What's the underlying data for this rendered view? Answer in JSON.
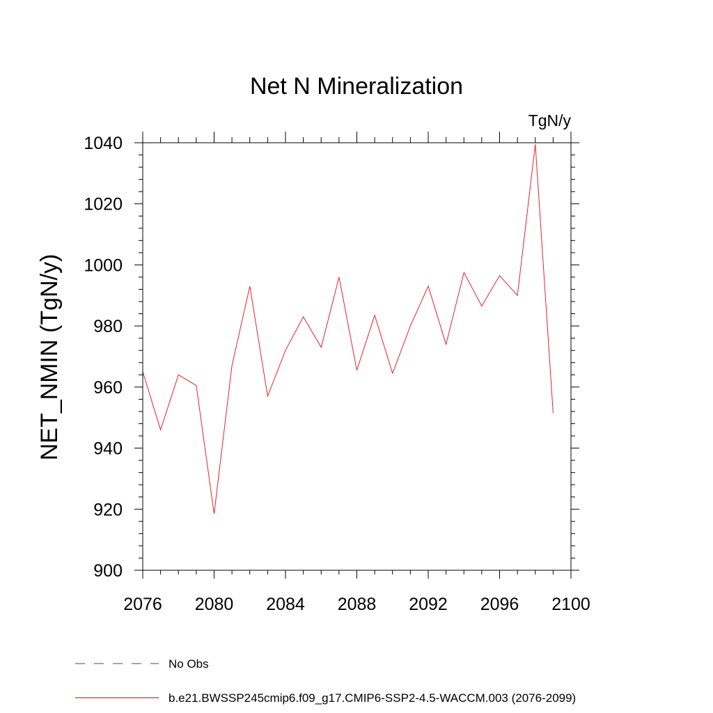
{
  "chart_data": {
    "type": "line",
    "title": "Net N Mineralization",
    "units_label": "TgN/y",
    "ylabel": "NET_NMIN  (TgN/y)",
    "xlabel": "",
    "xlim": [
      2076,
      2100
    ],
    "ylim": [
      900,
      1040
    ],
    "x_ticks": [
      2076,
      2080,
      2084,
      2088,
      2092,
      2096,
      2100
    ],
    "y_ticks": [
      900,
      920,
      940,
      960,
      980,
      1000,
      1020,
      1040
    ],
    "x_tick_labels": [
      "2076",
      "2080",
      "2084",
      "2088",
      "2092",
      "2096",
      "2100"
    ],
    "y_tick_labels": [
      "900",
      "920",
      "940",
      "960",
      "980",
      "1000",
      "1020",
      "1040"
    ],
    "grid": false,
    "legend_position": "bottom-left",
    "series": [
      {
        "name": "b.e21.BWSSP245cmip6.f09_g17.CMIP6-SSP2-4.5-WACCM.003 (2076-2099)",
        "color": "#e8202a",
        "style": "solid",
        "x": [
          2076,
          2077,
          2078,
          2079,
          2080,
          2081,
          2082,
          2083,
          2084,
          2085,
          2086,
          2087,
          2088,
          2089,
          2090,
          2091,
          2092,
          2093,
          2094,
          2095,
          2096,
          2097,
          2098,
          2099
        ],
        "y": [
          965,
          946,
          964,
          960.5,
          918.5,
          967,
          993,
          957,
          972,
          983,
          973,
          996,
          965.5,
          983.5,
          964.5,
          980,
          993,
          974,
          997.5,
          986.5,
          996.5,
          990,
          1039.5,
          951.5
        ]
      }
    ],
    "legend": [
      {
        "label": "No Obs",
        "color": "#6f62b5",
        "style": "dashed"
      },
      {
        "label": "b.e21.BWSSP245cmip6.f09_g17.CMIP6-SSP2-4.5-WACCM.003 (2076-2099)",
        "color": "#e8202a",
        "style": "solid"
      }
    ]
  }
}
